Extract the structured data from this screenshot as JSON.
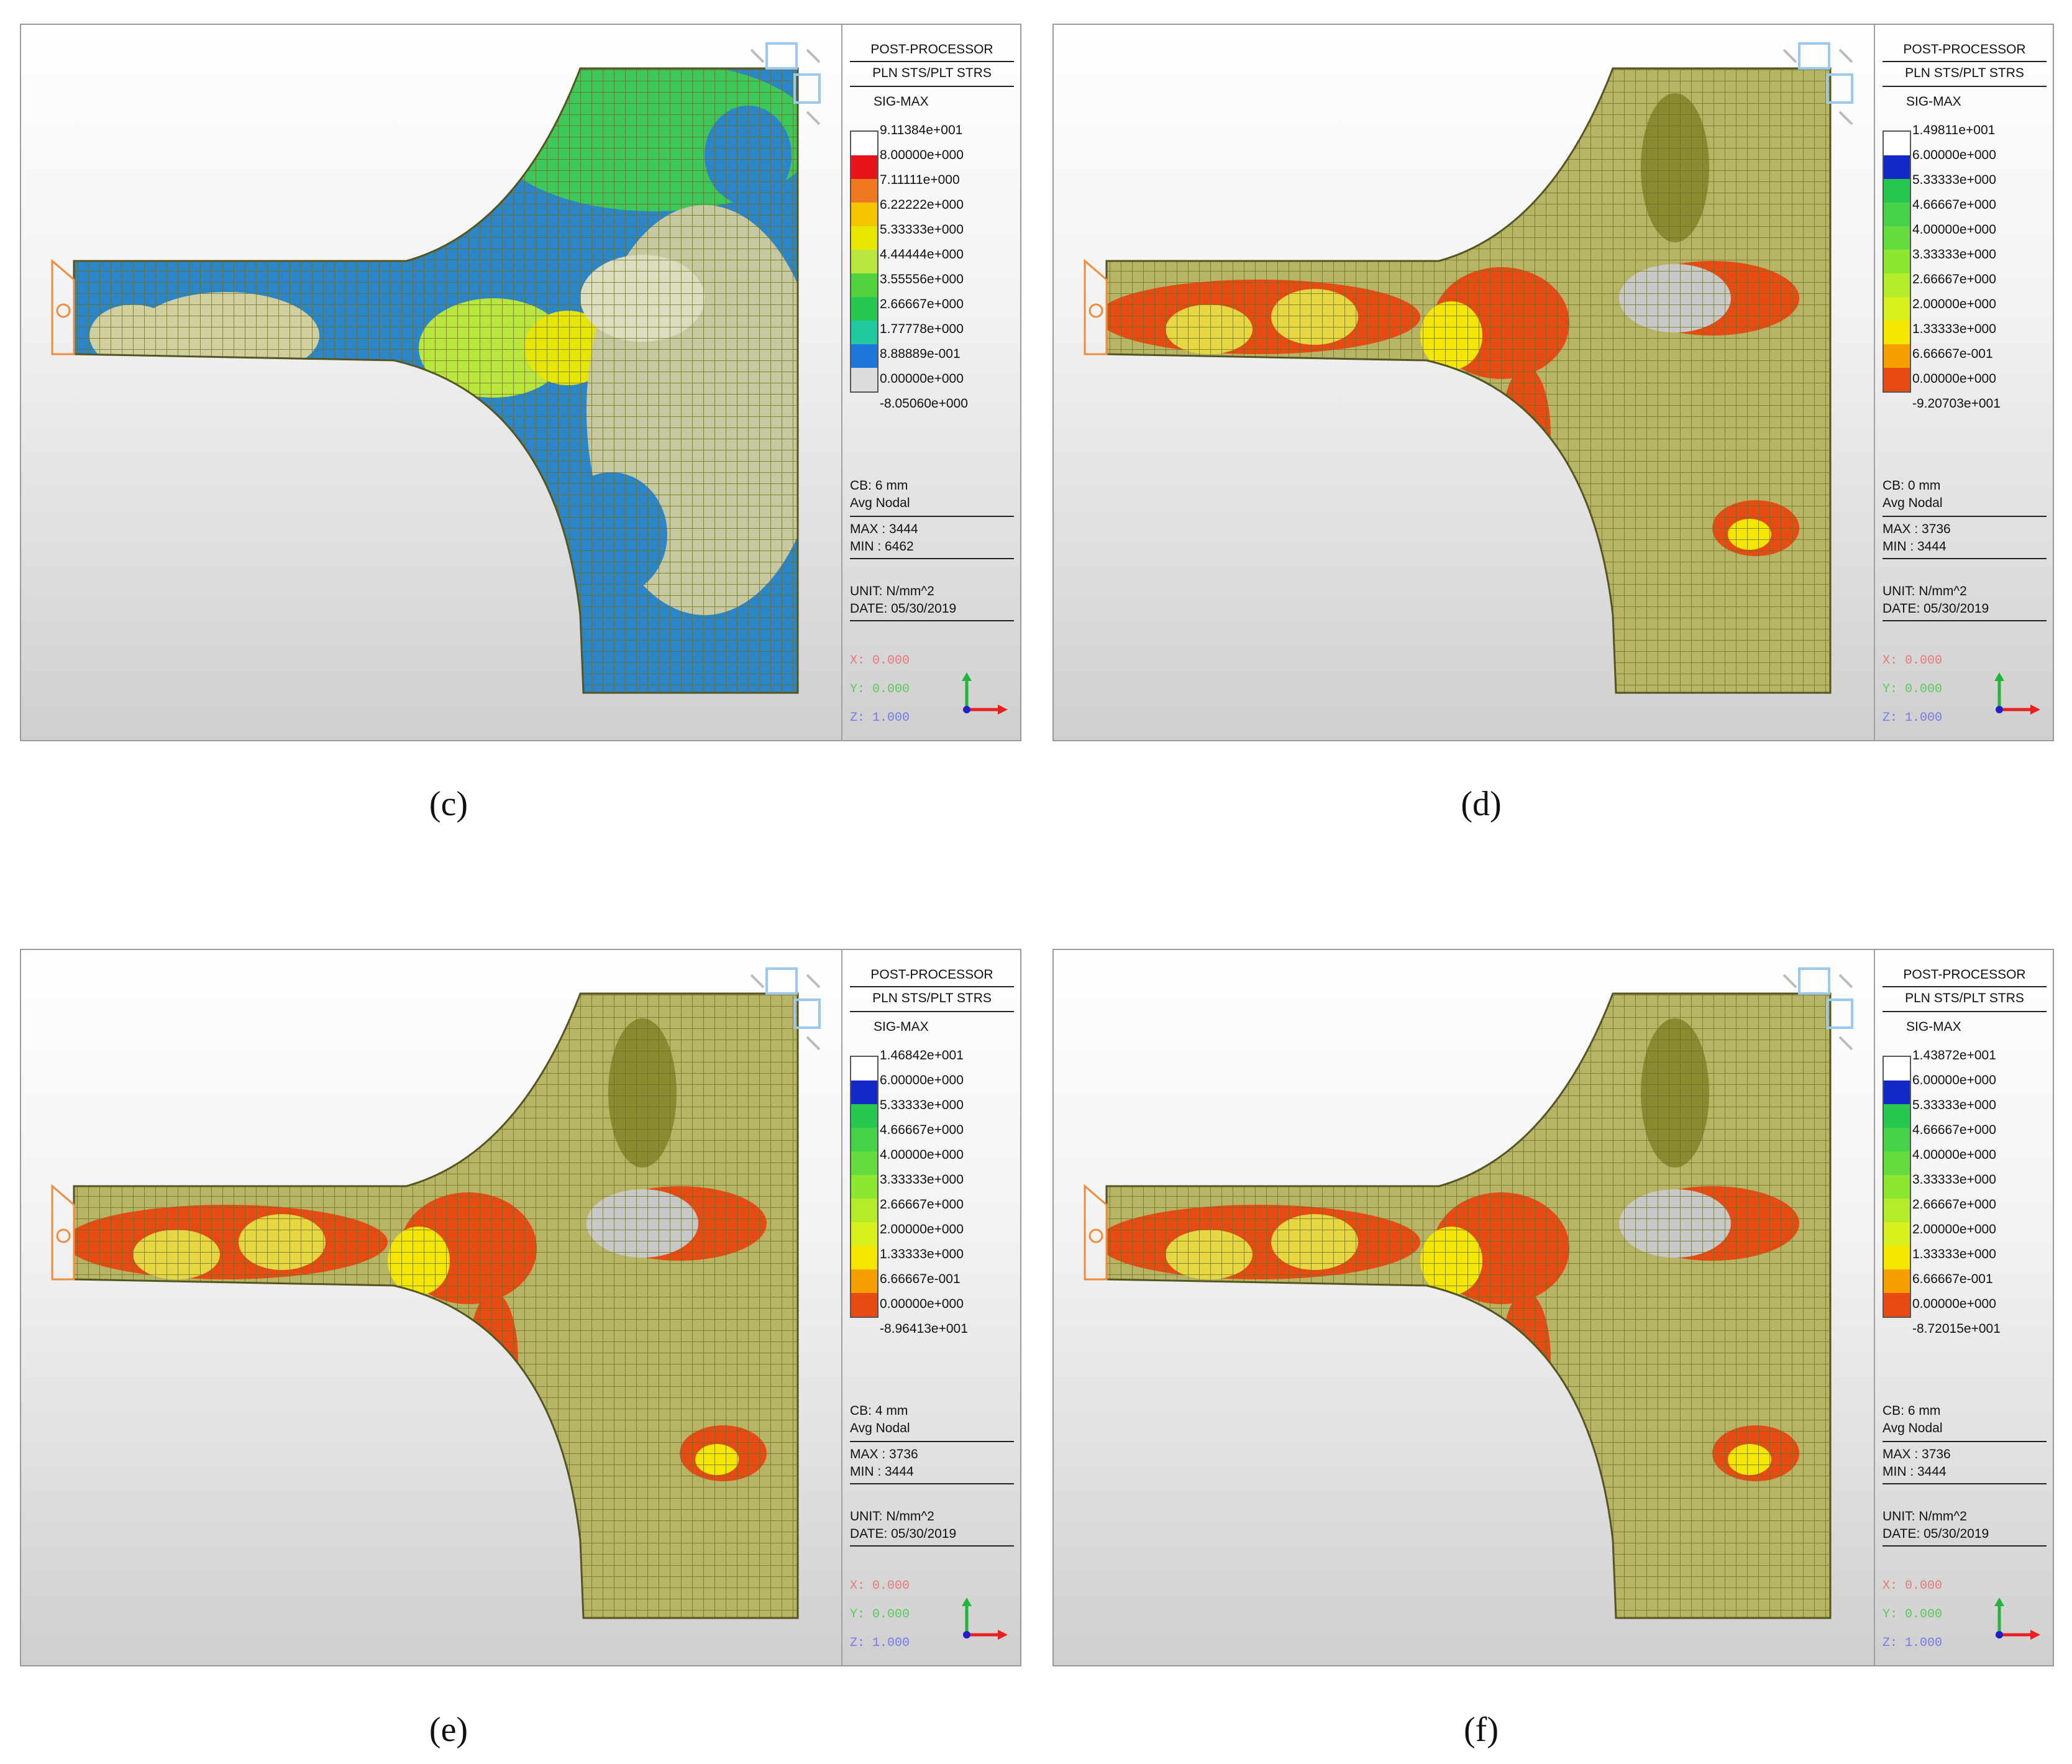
{
  "panels": [
    {
      "legend": {
        "title1": "POST-PROCESSOR",
        "title2": "PLN STS/PLT STRS",
        "title3": "SIG-MAX",
        "ticks": [
          "9.11384e+001",
          "8.00000e+000",
          "7.11111e+000",
          "6.22222e+000",
          "5.33333e+000",
          "4.44444e+000",
          "3.55556e+000",
          "2.66667e+000",
          "1.77778e+000",
          "8.88889e-001",
          "0.00000e+000",
          "-8.05060e+000"
        ],
        "colors": [
          "#ffffff",
          "#e8141c",
          "#f07820",
          "#f5c400",
          "#e6e600",
          "#b8e63c",
          "#50d23c",
          "#28c850",
          "#20c8a0",
          "#1e78dc",
          "#dcdcdc"
        ],
        "cb": "CB: 6 mm",
        "avg": "Avg Nodal",
        "max": "MAX : 3444",
        "min": "MIN : 6462",
        "unit": "UNIT: N/mm^2",
        "date": "DATE: 05/30/2019",
        "x": "X: 0.000",
        "y": "Y: 0.000",
        "z": "Z: 1.000"
      },
      "caption": "(c)",
      "scheme": "blue"
    },
    {
      "legend": {
        "title1": "POST-PROCESSOR",
        "title2": "PLN STS/PLT STRS",
        "title3": "SIG-MAX",
        "ticks": [
          "1.49811e+001",
          "6.00000e+000",
          "5.33333e+000",
          "4.66667e+000",
          "4.00000e+000",
          "3.33333e+000",
          "2.66667e+000",
          "2.00000e+000",
          "1.33333e+000",
          "6.66667e-001",
          "0.00000e+000",
          "-9.20703e+001"
        ],
        "colors": [
          "#ffffff",
          "#1428c8",
          "#28c850",
          "#46d246",
          "#64dc3c",
          "#8ce632",
          "#b4ec2a",
          "#d8f01e",
          "#f5e600",
          "#f5a000",
          "#e84a14"
        ],
        "cb": "CB: 0 mm",
        "avg": "Avg Nodal",
        "max": "MAX : 3736",
        "min": "MIN : 3444",
        "unit": "UNIT: N/mm^2",
        "date": "DATE: 05/30/2019",
        "x": "X: 0.000",
        "y": "Y: 0.000",
        "z": "Z: 1.000"
      },
      "caption": "(d)",
      "scheme": "orange"
    },
    {
      "legend": {
        "title1": "POST-PROCESSOR",
        "title2": "PLN STS/PLT STRS",
        "title3": "SIG-MAX",
        "ticks": [
          "1.46842e+001",
          "6.00000e+000",
          "5.33333e+000",
          "4.66667e+000",
          "4.00000e+000",
          "3.33333e+000",
          "2.66667e+000",
          "2.00000e+000",
          "1.33333e+000",
          "6.66667e-001",
          "0.00000e+000",
          "-8.96413e+001"
        ],
        "colors": [
          "#ffffff",
          "#1428c8",
          "#28c850",
          "#46d246",
          "#64dc3c",
          "#8ce632",
          "#b4ec2a",
          "#d8f01e",
          "#f5e600",
          "#f5a000",
          "#e84a14"
        ],
        "cb": "CB: 4 mm",
        "avg": "Avg Nodal",
        "max": "MAX : 3736",
        "min": "MIN : 3444",
        "unit": "UNIT: N/mm^2",
        "date": "DATE: 05/30/2019",
        "x": "X: 0.000",
        "y": "Y: 0.000",
        "z": "Z: 1.000"
      },
      "caption": "(e)",
      "scheme": "orange"
    },
    {
      "legend": {
        "title1": "POST-PROCESSOR",
        "title2": "PLN STS/PLT STRS",
        "title3": "SIG-MAX",
        "ticks": [
          "1.43872e+001",
          "6.00000e+000",
          "5.33333e+000",
          "4.66667e+000",
          "4.00000e+000",
          "3.33333e+000",
          "2.66667e+000",
          "2.00000e+000",
          "1.33333e+000",
          "6.66667e-001",
          "0.00000e+000",
          "-8.72015e+001"
        ],
        "colors": [
          "#ffffff",
          "#1428c8",
          "#28c850",
          "#46d246",
          "#64dc3c",
          "#8ce632",
          "#b4ec2a",
          "#d8f01e",
          "#f5e600",
          "#f5a000",
          "#e84a14"
        ],
        "cb": "CB: 6 mm",
        "avg": "Avg Nodal",
        "max": "MAX : 3736",
        "min": "MIN : 3444",
        "unit": "UNIT: N/mm^2",
        "date": "DATE: 05/30/2019",
        "x": "X: 0.000",
        "y": "Y: 0.000",
        "z": "Z: 1.000"
      },
      "caption": "(f)",
      "scheme": "orange"
    }
  ]
}
